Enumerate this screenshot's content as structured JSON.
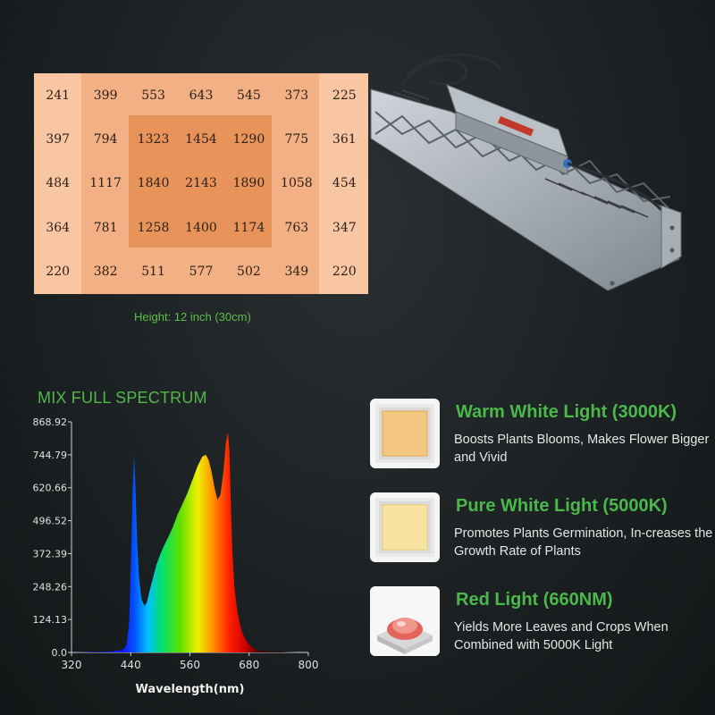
{
  "ppfd": {
    "rows": [
      [
        "241",
        "399",
        "553",
        "643",
        "545",
        "373",
        "225"
      ],
      [
        "397",
        "794",
        "1323",
        "1454",
        "1290",
        "775",
        "361"
      ],
      [
        "484",
        "1117",
        "1840",
        "2143",
        "1890",
        "1058",
        "454"
      ],
      [
        "364",
        "781",
        "1258",
        "1400",
        "1174",
        "763",
        "347"
      ],
      [
        "220",
        "382",
        "511",
        "577",
        "502",
        "349",
        "220"
      ]
    ],
    "height_label": "Height: 12 inch (30cm)"
  },
  "spectrum": {
    "title": "MIX FULL SPECTRUM",
    "xlabel": "Wavelength(nm)"
  },
  "chart_data": {
    "type": "area",
    "title": "MIX FULL SPECTRUM",
    "xlabel": "Wavelength(nm)",
    "ylabel": "",
    "xlim": [
      320,
      800
    ],
    "ylim": [
      0,
      868.92
    ],
    "x_ticks": [
      "320",
      "440",
      "560",
      "680",
      "800"
    ],
    "y_ticks": [
      "0.0",
      "124.13",
      "248.26",
      "372.39",
      "496.52",
      "620.66",
      "744.79",
      "868.92"
    ],
    "series": [
      {
        "x": [
          320,
          400,
          425,
          432,
          437,
          441,
          444,
          447,
          450,
          453,
          457,
          462,
          468,
          473,
          478,
          485,
          492,
          500,
          507,
          515,
          525,
          535,
          545,
          555,
          565,
          575,
          585,
          592,
          598,
          604,
          610,
          616,
          622,
          628,
          633,
          637,
          640,
          643,
          646,
          650,
          655,
          660,
          665,
          672,
          680,
          690,
          700,
          712,
          725,
          740,
          760,
          780,
          800
        ],
        "y": [
          0,
          3,
          10,
          30,
          120,
          380,
          620,
          745,
          600,
          420,
          280,
          200,
          175,
          190,
          230,
          280,
          330,
          370,
          400,
          430,
          470,
          520,
          560,
          600,
          650,
          700,
          738,
          745,
          725,
          680,
          620,
          575,
          595,
          680,
          790,
          830,
          760,
          560,
          380,
          250,
          170,
          120,
          80,
          50,
          30,
          15,
          8,
          5,
          3,
          2,
          1,
          0,
          0
        ]
      }
    ]
  },
  "leds": [
    {
      "title": "Warm White Light (3000K)",
      "desc": "Boosts Plants Blooms, Makes Flower Bigger and Vivid",
      "chip_color": "#f3c77f",
      "icon": "warm-white-led-chip"
    },
    {
      "title": "Pure White Light (5000K)",
      "desc": "Promotes Plants Germination, In-creases the Growth Rate of Plants",
      "chip_color": "#f8e4a0",
      "icon": "pure-white-led-chip"
    },
    {
      "title": "Red Light (660NM)",
      "desc": "Yields More Leaves and Crops When Combined with 5000K Light",
      "chip_color": "#e2665a",
      "icon": "red-led-chip"
    }
  ],
  "colors": {
    "accent_green": "#4ab84a",
    "grid_outer": "#f8c6a3",
    "grid_mid": "#f2b084",
    "grid_inner": "#e8935a"
  }
}
